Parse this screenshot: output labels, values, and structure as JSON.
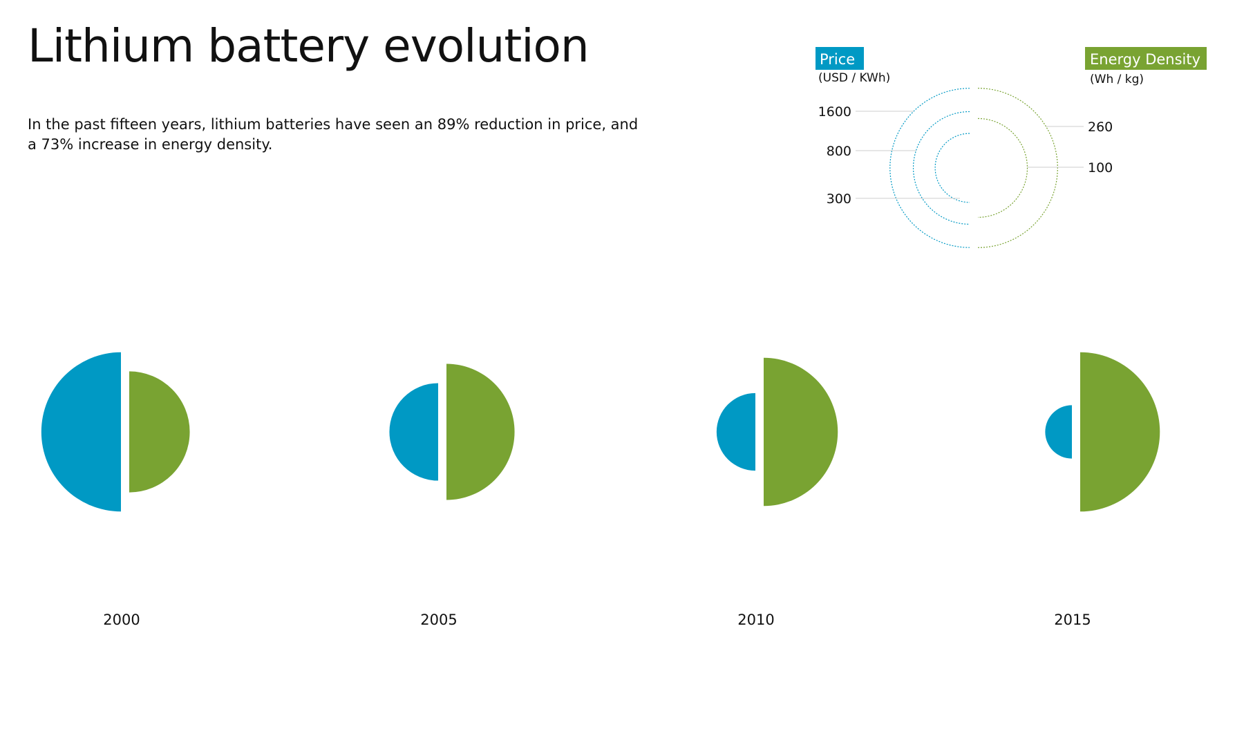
{
  "title": "Lithium battery evolution",
  "subtitle": "In the past fifteen years, lithium batteries have seen an 89% reduction in price, and a 73% increase in energy density.",
  "colors": {
    "price": "#0099c4",
    "energy": "#79a332"
  },
  "chart_data": {
    "type": "paired half-circle (area-proportional)",
    "categories": [
      "2000",
      "2005",
      "2010",
      "2015"
    ],
    "series": [
      {
        "name": "Price",
        "unit": "(USD / KWh)",
        "values": [
          1600,
          600,
          380,
          180
        ]
      },
      {
        "name": "Energy Density",
        "unit": "(Wh / kg)",
        "values": [
          150,
          190,
          225,
          260
        ]
      }
    ],
    "legend": {
      "price_ticks": [
        "1600",
        "800",
        "300"
      ],
      "energy_ticks": [
        "260",
        "100"
      ],
      "placement": "top-right"
    }
  }
}
